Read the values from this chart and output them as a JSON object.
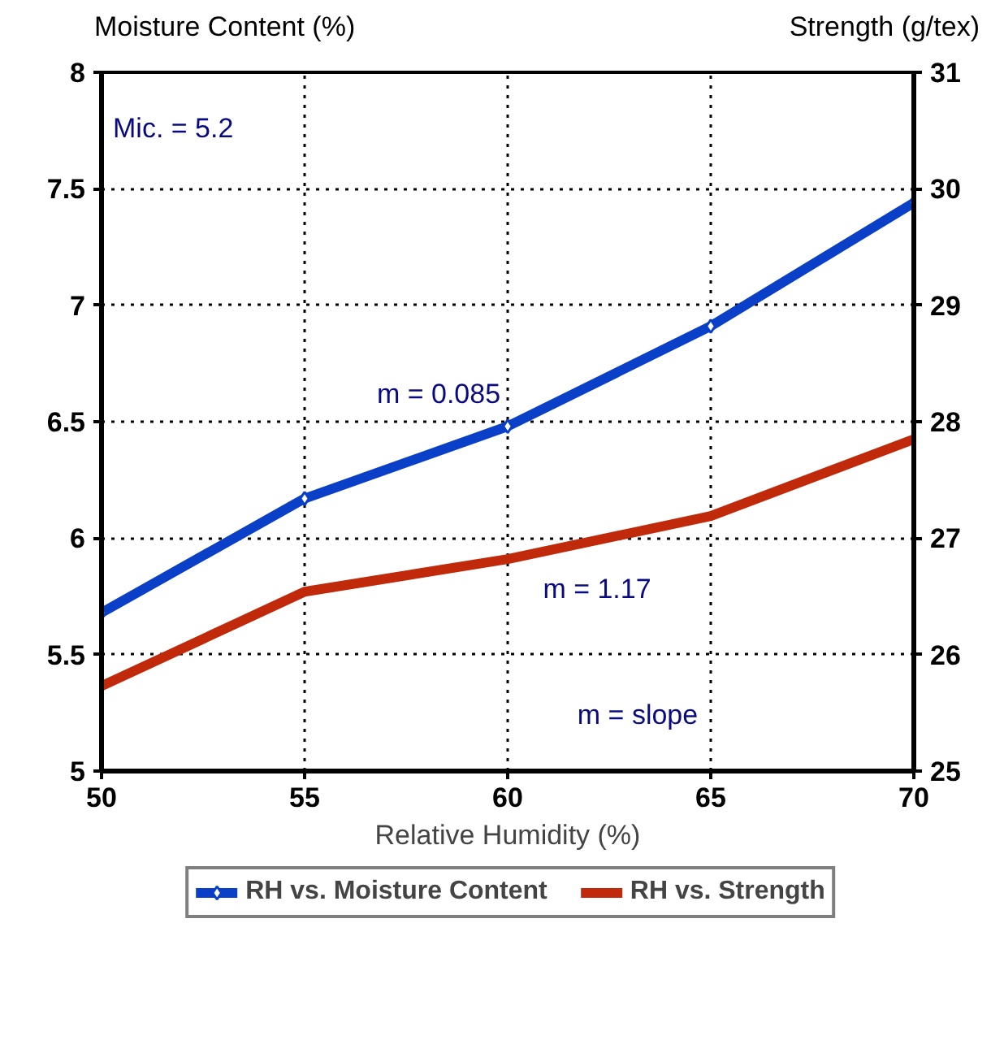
{
  "chart_data": {
    "type": "line",
    "x": [
      50,
      55,
      60,
      65,
      70
    ],
    "xlabel": "Relative Humidity (%)",
    "ylabel": "Moisture Content (%)",
    "y2label": "Strength (g/tex)",
    "series": [
      {
        "name": "RH vs. Moisture Content",
        "color": "#0a3fc8",
        "values": [
          5.68,
          6.17,
          6.48,
          6.91,
          7.44
        ],
        "marker": "diamond"
      },
      {
        "name": "RH vs. Strength",
        "color": "#c02a0a",
        "values": [
          25.73,
          26.54,
          26.82,
          27.19,
          27.85
        ],
        "axis": "y2",
        "marker": "none"
      }
    ],
    "xlim": [
      50,
      70
    ],
    "xticks": [
      50,
      55,
      60,
      65,
      70
    ],
    "ylim": [
      5,
      8
    ],
    "yticks": [
      5,
      {
        "value": 5.5,
        "label": "5.5"
      },
      6,
      {
        "value": 6.5,
        "label": "6.5"
      },
      7,
      {
        "value": 7.5,
        "label": "7.5"
      },
      8
    ],
    "y2lim": [
      25,
      31
    ],
    "y2ticks": [
      25,
      26,
      27,
      28,
      29,
      30,
      31
    ],
    "annotations": [
      "Mic. = 5.2",
      "m = 0.085",
      "m = 1.17",
      "m = slope"
    ],
    "grid": true,
    "legend": "bottom",
    "line_style": "solid"
  }
}
